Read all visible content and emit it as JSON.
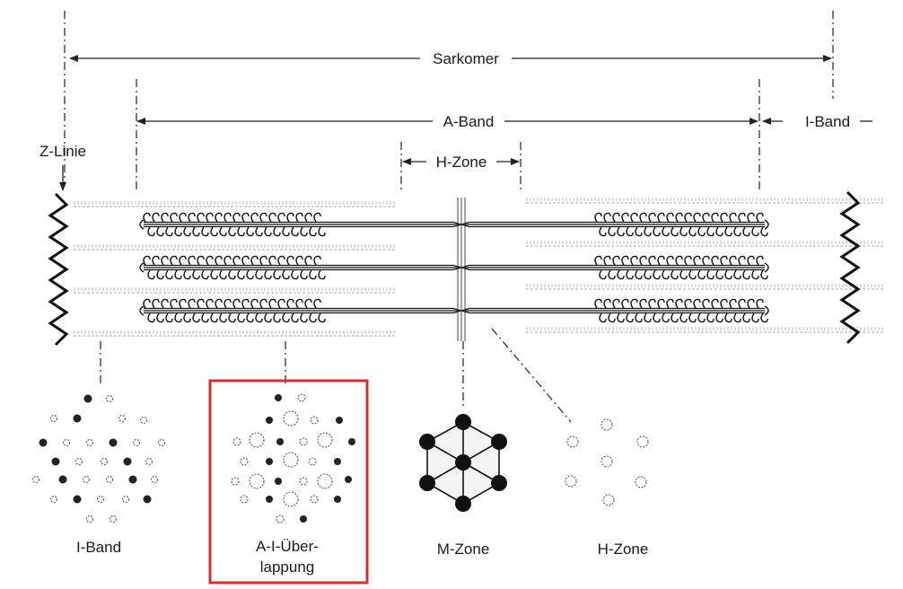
{
  "labels": {
    "sarkomer": "Sarkomer",
    "a_band": "A-Band",
    "i_band_top": "I-Band",
    "h_zone_top": "H-Zone",
    "z_linie": "Z-Linie"
  },
  "cross_sections": [
    {
      "id": "i-band",
      "label_line1": "I-Band",
      "label_line2": ""
    },
    {
      "id": "a-i-ueberlappung",
      "label_line1": "A-I-Über-",
      "label_line2": "lappung"
    },
    {
      "id": "m-zone",
      "label_line1": "M-Zone",
      "label_line2": ""
    },
    {
      "id": "h-zone",
      "label_line1": "H-Zone",
      "label_line2": ""
    }
  ],
  "highlight": {
    "target": "a-i-ueberlappung",
    "color": "#d32f2f"
  },
  "colors": {
    "ink": "#1a1a1a",
    "highlight": "#d32f2f",
    "thin_filament": "#c8c8c8"
  }
}
